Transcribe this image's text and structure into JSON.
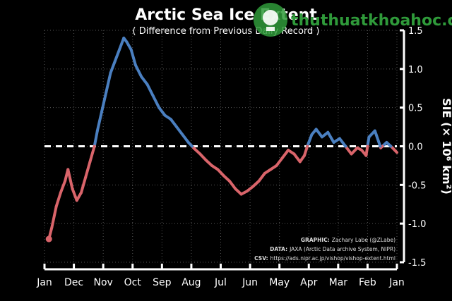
{
  "chart_data": {
    "type": "line",
    "title": "Arctic Sea Ice Extent",
    "subtitle": "( Difference from Previous Daily Record )",
    "ylabel": "SIE (× 10⁶ km²)",
    "ylim": [
      -1.5,
      1.5
    ],
    "y_ticks": [
      "-1.5",
      "-1.0",
      "-0.5",
      "0.0",
      "0.5",
      "1.0",
      "1.5"
    ],
    "x_ticks": [
      "Jan",
      "Feb",
      "Mar",
      "Apr",
      "May",
      "Jun",
      "Jul",
      "Aug",
      "Sep",
      "Oct",
      "Nov",
      "Dec",
      "Jan"
    ],
    "x_axis_direction": "reversed (mirrored image)",
    "zero_line": "dashed white",
    "grid": "dotted vertical and horizontal",
    "colors": {
      "positive": "#4a7fc0",
      "negative": "#d9646a",
      "background": "#000000"
    },
    "series": [
      {
        "values": [
          [
            0.0,
            -0.08
          ],
          [
            0.15,
            -0.02
          ],
          [
            0.35,
            0.05
          ],
          [
            0.55,
            -0.02
          ],
          [
            0.75,
            0.2
          ],
          [
            0.95,
            0.12
          ],
          [
            1.05,
            -0.12
          ],
          [
            1.2,
            -0.05
          ],
          [
            1.35,
            -0.02
          ],
          [
            1.55,
            -0.1
          ],
          [
            1.75,
            0.0
          ],
          [
            1.95,
            0.1
          ],
          [
            2.15,
            0.05
          ],
          [
            2.35,
            0.18
          ],
          [
            2.55,
            0.12
          ],
          [
            2.75,
            0.22
          ],
          [
            2.9,
            0.15
          ],
          [
            3.05,
            0.0
          ],
          [
            3.15,
            -0.12
          ],
          [
            3.3,
            -0.2
          ],
          [
            3.5,
            -0.1
          ],
          [
            3.7,
            -0.05
          ],
          [
            3.9,
            -0.15
          ],
          [
            4.1,
            -0.25
          ],
          [
            4.3,
            -0.3
          ],
          [
            4.5,
            -0.35
          ],
          [
            4.7,
            -0.45
          ],
          [
            4.9,
            -0.52
          ],
          [
            5.1,
            -0.58
          ],
          [
            5.3,
            -0.62
          ],
          [
            5.5,
            -0.55
          ],
          [
            5.7,
            -0.45
          ],
          [
            5.9,
            -0.38
          ],
          [
            6.1,
            -0.3
          ],
          [
            6.3,
            -0.25
          ],
          [
            6.5,
            -0.18
          ],
          [
            6.7,
            -0.1
          ],
          [
            6.9,
            -0.03
          ],
          [
            7.1,
            0.05
          ],
          [
            7.3,
            0.15
          ],
          [
            7.5,
            0.25
          ],
          [
            7.7,
            0.35
          ],
          [
            7.9,
            0.4
          ],
          [
            8.1,
            0.5
          ],
          [
            8.3,
            0.65
          ],
          [
            8.5,
            0.8
          ],
          [
            8.7,
            0.9
          ],
          [
            8.9,
            1.05
          ],
          [
            9.05,
            1.25
          ],
          [
            9.2,
            1.35
          ],
          [
            9.3,
            1.4
          ],
          [
            9.45,
            1.25
          ],
          [
            9.6,
            1.1
          ],
          [
            9.75,
            0.95
          ],
          [
            9.9,
            0.7
          ],
          [
            10.05,
            0.45
          ],
          [
            10.2,
            0.2
          ],
          [
            10.3,
            0.0
          ],
          [
            10.45,
            -0.2
          ],
          [
            10.6,
            -0.4
          ],
          [
            10.75,
            -0.6
          ],
          [
            10.9,
            -0.7
          ],
          [
            11.05,
            -0.55
          ],
          [
            11.2,
            -0.3
          ],
          [
            11.3,
            -0.45
          ],
          [
            11.45,
            -0.6
          ],
          [
            11.6,
            -0.78
          ],
          [
            11.75,
            -1.05
          ],
          [
            11.85,
            -1.2
          ]
        ]
      }
    ],
    "credits": {
      "graphic": "Zachary Labe (@ZLabe)",
      "data": "JAXA (Arctic Data archive System, NIPR)",
      "csv": "https://ads.nipr.ac.jp/vishop/vishop-extent.html"
    }
  },
  "labels": {
    "graphic_label": "GRAPHIC:",
    "data_label": "DATA:",
    "csv_label": "CSV:"
  },
  "watermark": {
    "text": "thuthuatkhoahoc.com",
    "accent": "#2f9a3a"
  }
}
